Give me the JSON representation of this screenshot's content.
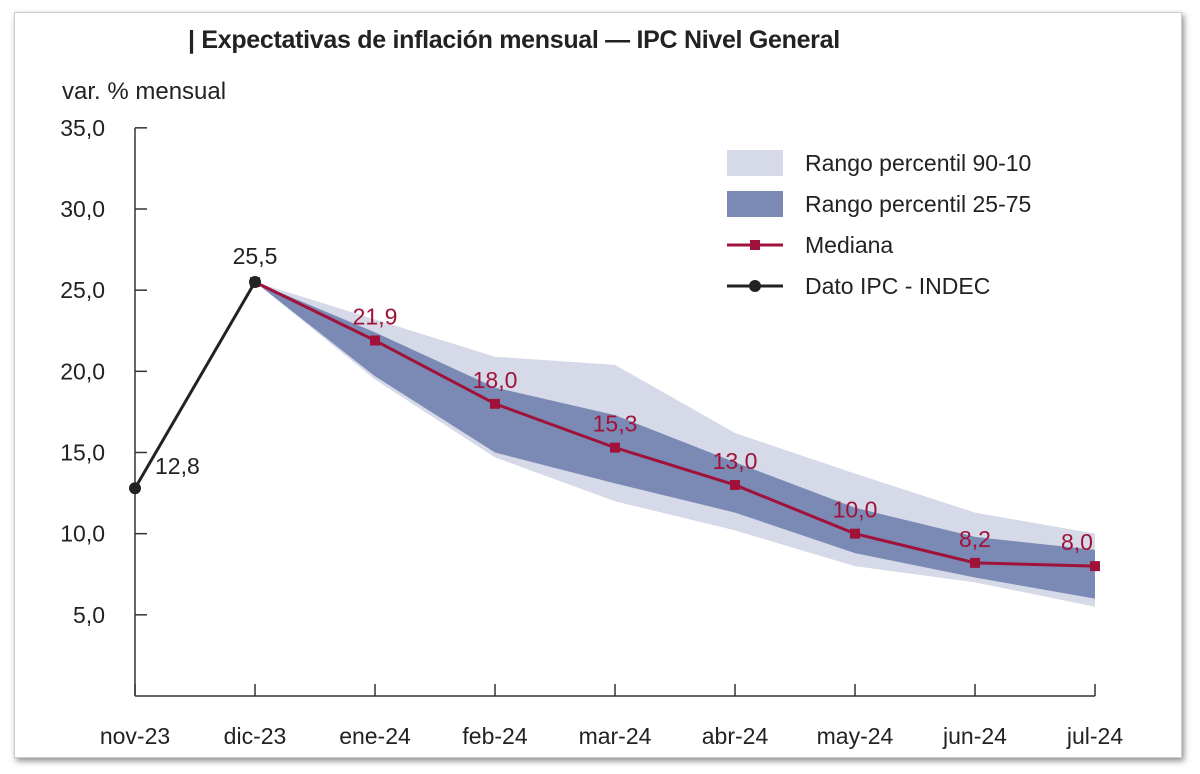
{
  "chart_data": {
    "type": "area",
    "title": "| Expectativas de inflación mensual — IPC Nivel General",
    "ylabel": "var. % mensual",
    "xlabel": "",
    "ylim": [
      0,
      35
    ],
    "yticks": [
      "35,0",
      "30,0",
      "25,0",
      "20,0",
      "15,0",
      "10,0",
      "5,0"
    ],
    "ytick_values": [
      35,
      30,
      25,
      20,
      15,
      10,
      5
    ],
    "categories": [
      "nov-23",
      "dic-23",
      "ene-24",
      "feb-24",
      "mar-24",
      "abr-24",
      "may-24",
      "jun-24",
      "jul-24"
    ],
    "grid": false,
    "legend_position": "top-right",
    "series": [
      {
        "name": "Rango percentil 90-10",
        "kind": "band",
        "color": "#d5d9e8",
        "lower": [
          null,
          25.5,
          19.5,
          14.7,
          12.0,
          10.2,
          8.0,
          7.0,
          5.5
        ],
        "upper": [
          null,
          25.5,
          23.2,
          20.9,
          20.4,
          16.2,
          13.7,
          11.3,
          10.0
        ]
      },
      {
        "name": "Rango percentil 25-75",
        "kind": "band",
        "color": "#7a8ab5",
        "lower": [
          null,
          25.5,
          19.7,
          15.0,
          13.1,
          11.3,
          8.8,
          7.3,
          6.0
        ],
        "upper": [
          null,
          25.5,
          22.4,
          19.0,
          17.3,
          14.4,
          11.6,
          9.8,
          9.0
        ]
      },
      {
        "name": "Mediana",
        "kind": "line",
        "marker": "square",
        "color": "#a0123a",
        "values": [
          null,
          25.5,
          21.9,
          18.0,
          15.3,
          13.0,
          10.0,
          8.2,
          8.0
        ],
        "labels": [
          "",
          "",
          "21,9",
          "18,0",
          "15,3",
          "13,0",
          "10,0",
          "8,2",
          "8,0"
        ]
      },
      {
        "name": "Dato IPC - INDEC",
        "kind": "line",
        "marker": "circle",
        "color": "#222222",
        "values": [
          12.8,
          25.5,
          null,
          null,
          null,
          null,
          null,
          null,
          null
        ],
        "labels": [
          "12,8",
          "25,5",
          "",
          "",
          "",
          "",
          "",
          "",
          ""
        ]
      }
    ]
  }
}
